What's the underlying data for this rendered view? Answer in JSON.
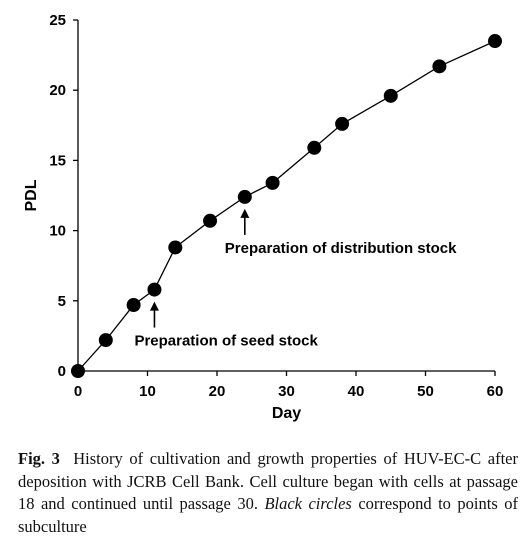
{
  "chart_data": {
    "type": "line",
    "xlabel": "Day",
    "ylabel": "PDL",
    "xlim": [
      0,
      60
    ],
    "ylim": [
      0,
      25
    ],
    "xticks": [
      "0",
      "10",
      "20",
      "30",
      "40",
      "50",
      "60"
    ],
    "yticks": [
      "0",
      "5",
      "10",
      "15",
      "20",
      "25"
    ],
    "grid": false,
    "series": [
      {
        "x": [
          0,
          4,
          8,
          11,
          14,
          19,
          24,
          28,
          34,
          38,
          45,
          52,
          60
        ],
        "y": [
          0,
          2.2,
          4.7,
          5.8,
          8.8,
          10.7,
          12.4,
          13.4,
          15.9,
          17.6,
          19.6,
          21.7,
          23.5
        ],
        "marker": "circle",
        "color": "#000000"
      }
    ],
    "annotations": [
      {
        "text": "Preparation of seed stock",
        "x": 11
      },
      {
        "text": "Preparation of distribution stock",
        "x": 24
      }
    ]
  },
  "caption": {
    "label": "Fig. 3",
    "text_1": "History of cultivation and growth properties of HUV-EC-C after deposition with JCRB Cell Bank. Cell culture began with cells at passage 18 and continued until passage 30. ",
    "italic": "Black circles",
    "text_2": " correspond to points of subculture"
  }
}
